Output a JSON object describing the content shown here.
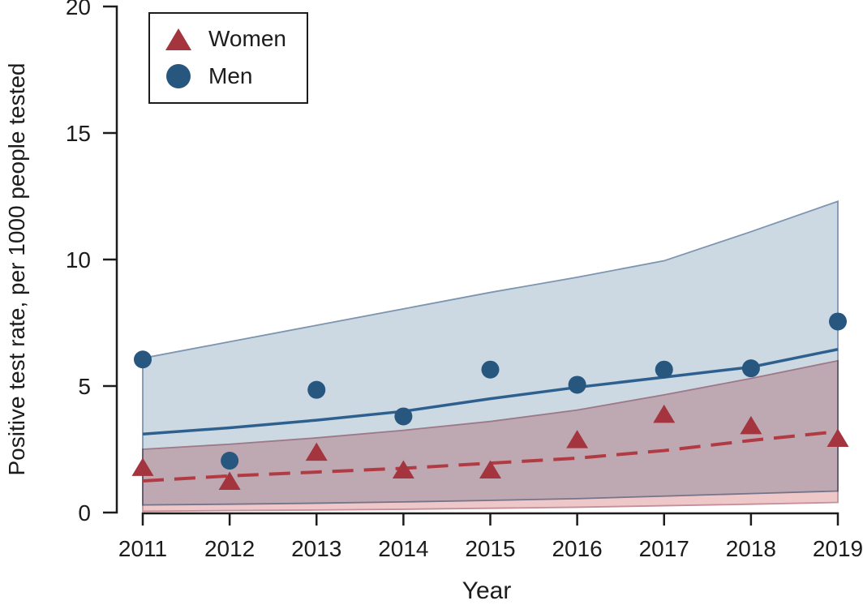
{
  "chart_data": {
    "type": "scatter",
    "title": "",
    "xlabel": "Year",
    "ylabel": "Positive test rate, per 1000 people tested",
    "x": [
      2011,
      2012,
      2013,
      2014,
      2015,
      2016,
      2017,
      2018,
      2019
    ],
    "ylim": [
      0,
      20
    ],
    "yticks": [
      0,
      5,
      10,
      15,
      20
    ],
    "grid": false,
    "legend_position": "top-left",
    "axis_color": "#1c1c1c",
    "text_color": "#1c1c1c",
    "series": [
      {
        "name": "Women",
        "marker": "triangle",
        "marker_color": "#a4353e",
        "line_style": "dashed",
        "line_color": "#b23a43",
        "band_fill": "#eec7c9",
        "band_edge": "#c48f99",
        "points": [
          1.75,
          1.2,
          2.35,
          1.65,
          1.65,
          2.85,
          3.85,
          3.4,
          2.9
        ],
        "trend": [
          1.25,
          1.45,
          1.6,
          1.75,
          1.95,
          2.15,
          2.45,
          2.85,
          3.2
        ],
        "ci_upper": [
          2.5,
          2.7,
          2.95,
          3.25,
          3.6,
          4.05,
          4.65,
          5.3,
          6.0
        ],
        "ci_lower": [
          0.05,
          0.08,
          0.1,
          0.13,
          0.17,
          0.21,
          0.27,
          0.33,
          0.4
        ]
      },
      {
        "name": "Men",
        "marker": "circle",
        "marker_color": "#27567f",
        "line_style": "solid",
        "line_color": "#2d608e",
        "band_fill": "#ccd8e2",
        "band_edge": "#7d95b0",
        "points": [
          6.05,
          2.05,
          4.85,
          3.8,
          5.65,
          5.05,
          5.65,
          5.7,
          7.55
        ],
        "trend": [
          3.1,
          3.35,
          3.65,
          4.0,
          4.5,
          4.95,
          5.35,
          5.75,
          6.45
        ],
        "ci_upper": [
          6.1,
          6.75,
          7.4,
          8.05,
          8.7,
          9.3,
          9.95,
          11.1,
          12.3
        ],
        "ci_lower": [
          0.3,
          0.33,
          0.37,
          0.42,
          0.48,
          0.55,
          0.65,
          0.75,
          0.85
        ]
      }
    ]
  }
}
